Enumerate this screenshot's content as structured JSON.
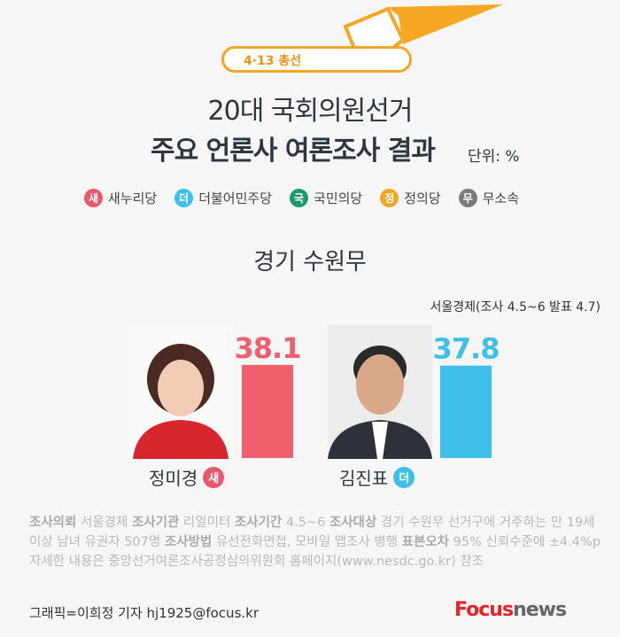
{
  "header": {
    "badge": "4·13 총선",
    "title_line1": "20대 국회의원선거",
    "title_line2": "주요 언론사 여론조사 결과",
    "unit": "단위: %"
  },
  "legend": [
    {
      "mark": "새",
      "label": "새누리당",
      "color": "#e85a6b"
    },
    {
      "mark": "더",
      "label": "더불어민주당",
      "color": "#3fc0ea"
    },
    {
      "mark": "국",
      "label": "국민의당",
      "color": "#1a9a6c"
    },
    {
      "mark": "정",
      "label": "정의당",
      "color": "#f5a623"
    },
    {
      "mark": "무",
      "label": "무소속",
      "color": "#7a7a7a"
    }
  ],
  "region": "경기 수원무",
  "source": "서울경제(조사 4.5~6 발표 4.7)",
  "chart_data": {
    "type": "bar",
    "categories": [
      "정미경",
      "김진표"
    ],
    "party_marks": [
      "새",
      "더"
    ],
    "values": [
      38.1,
      37.8
    ],
    "colors": [
      "#ef5f6e",
      "#3fc0ea"
    ],
    "ylim": [
      0,
      100
    ]
  },
  "notes": [
    {
      "b": "조사의뢰",
      "t": " 서울경제 "
    },
    {
      "b": "조사기관",
      "t": " 리얼미터 "
    },
    {
      "b": "조사기간",
      "t": " 4.5~6 "
    },
    {
      "b": "조사대상",
      "t": " 경기 수원무 선거구에 거주하는 만 19세 이상 남녀 유권자 507명 "
    },
    {
      "b": "조사방법",
      "t": " 유선전화면접, 모바일 앱조사 병행 "
    },
    {
      "b": "표본오차",
      "t": " 95% 신뢰수준에 ±4.4%p  자세한 내용은 중앙선거여론조사공정심의위원회 홈페이지(www.nesdc.go.kr) 참조"
    }
  ],
  "credit": "그래픽=이희정 기자 hj1925@focus.kr",
  "logo": {
    "focus": "Focus",
    "news": "news"
  }
}
